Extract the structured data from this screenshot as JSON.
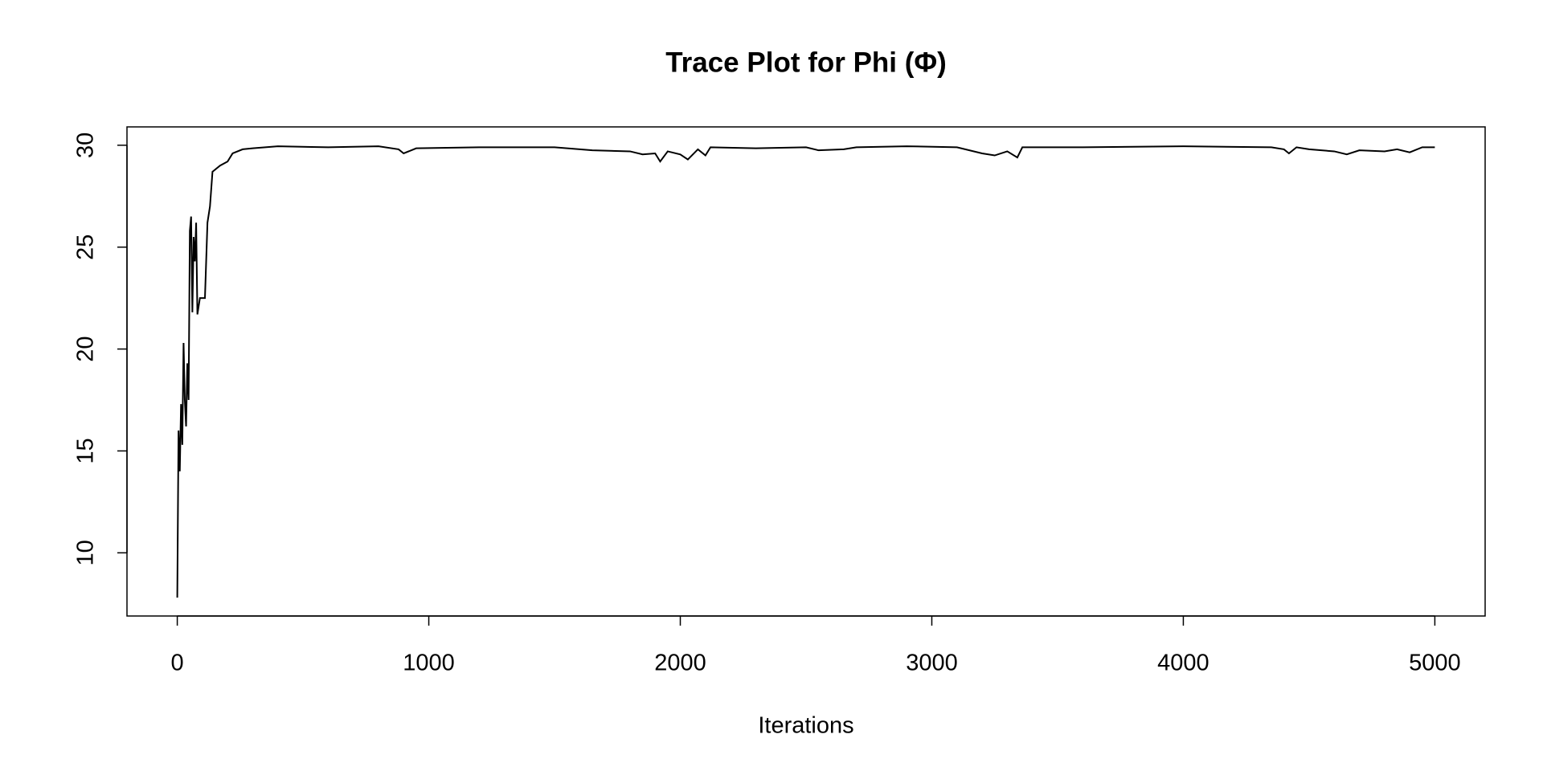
{
  "chart_data": {
    "type": "line",
    "title": "Trace Plot for Phi (Φ)",
    "x_label": "Iterations",
    "x": [
      0,
      5,
      10,
      15,
      20,
      25,
      30,
      35,
      40,
      45,
      50,
      55,
      60,
      65,
      70,
      75,
      80,
      90,
      110,
      120,
      130,
      140,
      170,
      200,
      220,
      260,
      300,
      400,
      600,
      800,
      880,
      900,
      950,
      1200,
      1500,
      1650,
      1800,
      1850,
      1900,
      1920,
      1950,
      2000,
      2030,
      2070,
      2100,
      2120,
      2300,
      2500,
      2550,
      2650,
      2700,
      2900,
      3100,
      3200,
      3250,
      3300,
      3340,
      3360,
      3600,
      4000,
      4350,
      4400,
      4420,
      4450,
      4500,
      4600,
      4650,
      4700,
      4800,
      4850,
      4900,
      4950,
      5000
    ],
    "series": [
      {
        "color": "#000000",
        "values": [
          7.8,
          16,
          14,
          17.3,
          15.3,
          20.3,
          17.5,
          16.2,
          19.3,
          17.5,
          25.8,
          26.5,
          21.8,
          25.5,
          24.3,
          26.2,
          21.7,
          22.5,
          22.5,
          26.2,
          27,
          28.7,
          29,
          29.2,
          29.6,
          29.8,
          29.85,
          29.95,
          29.9,
          29.95,
          29.8,
          29.6,
          29.85,
          29.9,
          29.9,
          29.75,
          29.7,
          29.55,
          29.6,
          29.2,
          29.7,
          29.55,
          29.3,
          29.8,
          29.5,
          29.9,
          29.85,
          29.9,
          29.75,
          29.8,
          29.9,
          29.95,
          29.9,
          29.6,
          29.5,
          29.7,
          29.4,
          29.9,
          29.9,
          29.95,
          29.9,
          29.8,
          29.6,
          29.9,
          29.8,
          29.7,
          29.55,
          29.75,
          29.7,
          29.8,
          29.65,
          29.9,
          29.9
        ]
      }
    ],
    "xlim": [
      -200,
      5200
    ],
    "xticks": [
      0,
      1000,
      2000,
      3000,
      4000,
      5000
    ],
    "ylim": [
      6.9,
      30.9
    ],
    "yticks": [
      10,
      15,
      20,
      25,
      30
    ],
    "grid": false
  }
}
